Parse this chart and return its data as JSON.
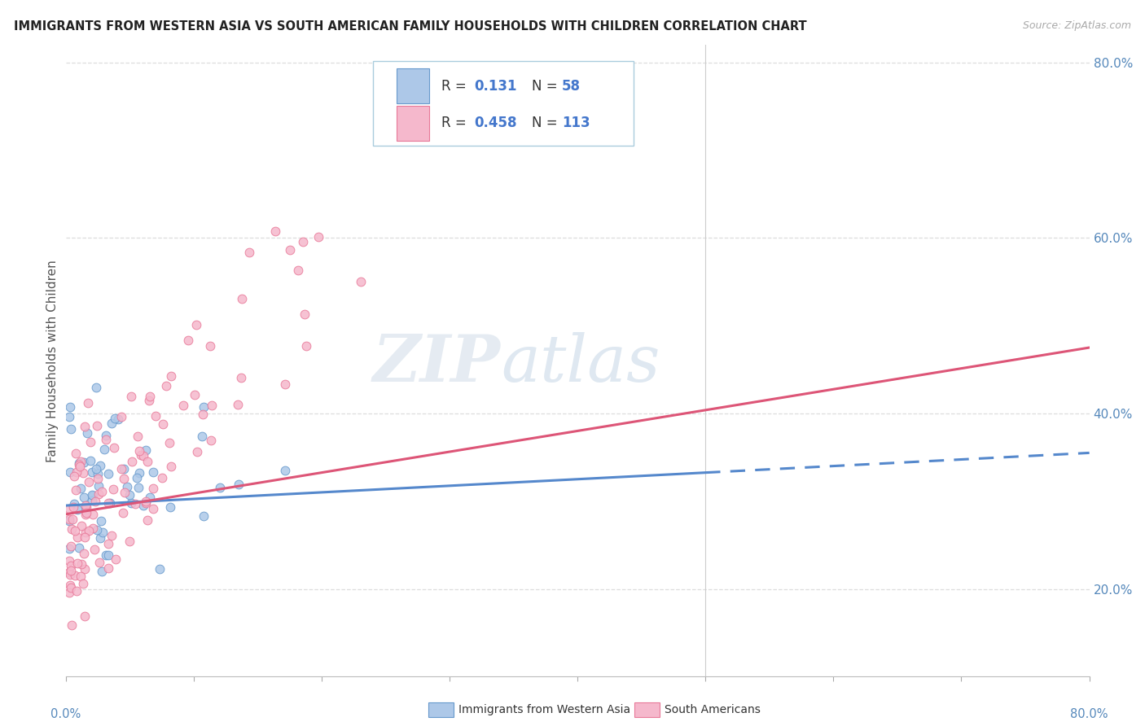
{
  "title": "IMMIGRANTS FROM WESTERN ASIA VS SOUTH AMERICAN FAMILY HOUSEHOLDS WITH CHILDREN CORRELATION CHART",
  "source": "Source: ZipAtlas.com",
  "ylabel": "Family Households with Children",
  "watermark_zip": "ZIP",
  "watermark_atlas": "atlas",
  "xlim": [
    0.0,
    0.8
  ],
  "ylim": [
    0.1,
    0.82
  ],
  "right_yticks": [
    0.2,
    0.4,
    0.6,
    0.8
  ],
  "right_ytick_labels": [
    "20.0%",
    "40.0%",
    "60.0%",
    "80.0%"
  ],
  "series1_color": "#adc8e8",
  "series1_edge": "#6699cc",
  "series2_color": "#f5b8cc",
  "series2_edge": "#e87898",
  "line1_color": "#5588cc",
  "line2_color": "#dd5577",
  "r1": 0.131,
  "n1": 58,
  "r2": 0.458,
  "n2": 113,
  "blue_text_color": "#4477cc",
  "n_text_color": "#4477cc",
  "legend1": "Immigrants from Western Asia",
  "legend2": "South Americans",
  "title_color": "#222222",
  "source_color": "#aaaaaa",
  "axis_color": "#5588bb",
  "ylabel_color": "#555555",
  "grid_color": "#dddddd",
  "line1_solid_end": 0.5,
  "line1_end": 0.8,
  "line2_end": 0.8,
  "blue_line_y_start": 0.295,
  "blue_line_y_end": 0.355,
  "pink_line_y_start": 0.285,
  "pink_line_y_end": 0.475
}
